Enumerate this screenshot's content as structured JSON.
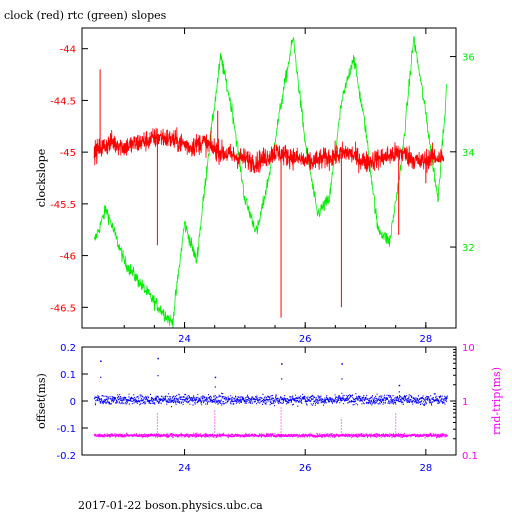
{
  "title": "clock (red) rtc (green) slopes",
  "footer": "2017-01-22  boson.physics.ubc.ca",
  "colors": {
    "clock": "#ff0000",
    "rtc": "#00ee00",
    "offset": "#0000ff",
    "rndtrip": "#ff00ff",
    "frame": "#000000"
  },
  "chart_data": [
    {
      "type": "line",
      "xlim": [
        22.3,
        28.5
      ],
      "x_ticks": [
        "24",
        "26",
        "28"
      ],
      "left_axis": {
        "label": "clockslope",
        "ylim": [
          -46.7,
          -43.8
        ],
        "ticks": [
          "-44",
          "-44.5",
          "-45",
          "-45.5",
          "-46",
          "-46.5"
        ],
        "color": "#ff0000"
      },
      "right_axis": {
        "label": "",
        "ylim": [
          30.3,
          36.6
        ],
        "ticks": [
          "32",
          "34",
          "36"
        ],
        "color": "#00ee00"
      },
      "series": [
        {
          "name": "clock (red)",
          "axis": "left",
          "x": [
            22.5,
            22.8,
            23.0,
            23.3,
            23.6,
            23.9,
            24.1,
            24.3,
            24.6,
            24.9,
            25.2,
            25.5,
            25.8,
            26.1,
            26.4,
            26.7,
            27.0,
            27.3,
            27.6,
            27.9,
            28.1,
            28.3
          ],
          "y": [
            -45.0,
            -44.9,
            -44.95,
            -44.9,
            -44.85,
            -44.9,
            -44.95,
            -44.9,
            -45.0,
            -45.05,
            -45.1,
            -45.0,
            -45.05,
            -45.1,
            -45.05,
            -45.0,
            -45.1,
            -45.05,
            -45.0,
            -45.1,
            -45.05,
            -45.05
          ],
          "spikes": [
            [
              22.6,
              -44.2
            ],
            [
              23.55,
              -45.9
            ],
            [
              24.55,
              -44.6
            ],
            [
              25.6,
              -46.6
            ],
            [
              26.6,
              -46.5
            ],
            [
              27.55,
              -45.8
            ],
            [
              28.0,
              -45.3
            ]
          ]
        },
        {
          "name": "rtc (green)",
          "axis": "right",
          "x": [
            22.5,
            22.7,
            23.0,
            23.4,
            23.8,
            24.0,
            24.2,
            24.4,
            24.6,
            24.8,
            25.0,
            25.2,
            25.4,
            25.6,
            25.8,
            26.0,
            26.2,
            26.4,
            26.6,
            26.8,
            27.0,
            27.2,
            27.4,
            27.6,
            27.8,
            28.0,
            28.2,
            28.35
          ],
          "y": [
            32.1,
            32.8,
            31.7,
            31.0,
            30.4,
            32.5,
            31.7,
            34.0,
            36.0,
            34.8,
            33.0,
            32.3,
            33.5,
            35.0,
            36.4,
            34.2,
            32.7,
            33.0,
            35.0,
            36.0,
            34.5,
            32.4,
            32.1,
            33.8,
            36.4,
            34.8,
            33.0,
            35.4
          ]
        }
      ]
    },
    {
      "type": "scatter",
      "xlim": [
        22.3,
        28.5
      ],
      "x_ticks": [
        "24",
        "26",
        "28"
      ],
      "left_axis": {
        "label": "offset(ms)",
        "ylim": [
          -0.2,
          0.2
        ],
        "ticks": [
          "0.2",
          "0.1",
          "0",
          "-0.1",
          "-0.2"
        ],
        "color": "#0000ff"
      },
      "right_axis": {
        "label": "rnd-trip(ms)",
        "scale": "log",
        "ylim": [
          0.1,
          10
        ],
        "ticks": [
          "10",
          "1",
          "0.1"
        ],
        "color": "#ff00ff"
      },
      "series": [
        {
          "name": "offset",
          "axis": "left",
          "band_center": 0.005,
          "band_halfwidth": 0.03,
          "spikes": [
            [
              22.6,
              0.15
            ],
            [
              23.55,
              0.16
            ],
            [
              24.5,
              0.09
            ],
            [
              25.6,
              0.14
            ],
            [
              26.6,
              0.14
            ],
            [
              27.55,
              0.06
            ]
          ]
        },
        {
          "name": "rnd-trip",
          "axis": "right",
          "band_center": 0.23,
          "spikes": [
            [
              23.55,
              0.6
            ],
            [
              24.5,
              0.7
            ],
            [
              25.6,
              0.8
            ],
            [
              26.6,
              0.5
            ],
            [
              27.5,
              0.6
            ]
          ]
        }
      ]
    }
  ]
}
